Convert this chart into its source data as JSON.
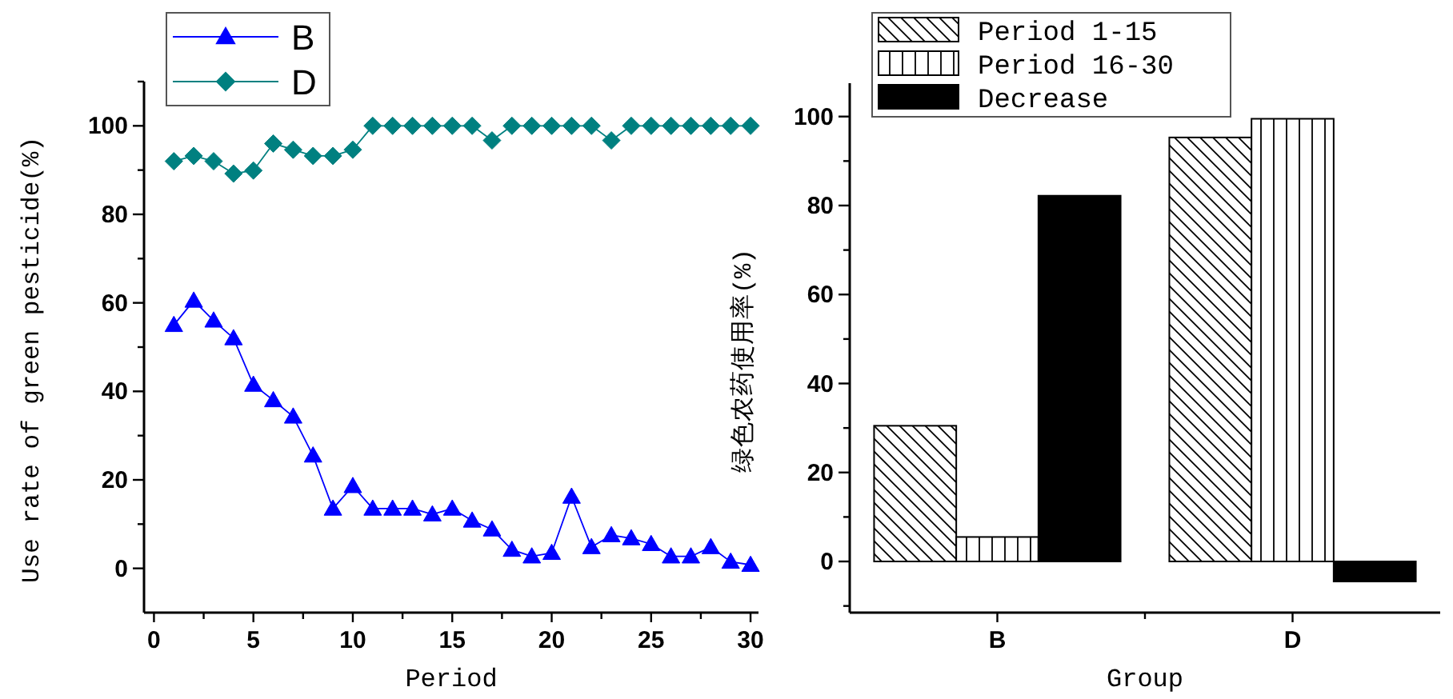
{
  "chart_data": [
    {
      "type": "line",
      "xlabel": "Period",
      "ylabel": "Use rate of green pesticide(%)",
      "xlim": [
        -0.5,
        30.4
      ],
      "ylim": [
        -10,
        110
      ],
      "xticks": [
        0,
        {
          "value": 2.5,
          "label": null
        },
        5,
        {
          "value": 7.5,
          "label": null
        },
        10,
        {
          "value": 12.5,
          "label": null
        },
        15,
        {
          "value": 17.5,
          "label": null
        },
        20,
        {
          "value": 22.5,
          "label": null
        },
        25,
        {
          "value": 27.5,
          "label": null
        },
        30
      ],
      "yticks": [
        0,
        {
          "value": 10,
          "label": null
        },
        20,
        {
          "value": 30,
          "label": null
        },
        40,
        {
          "value": 50,
          "label": null
        },
        60,
        {
          "value": 70,
          "label": null
        },
        80,
        {
          "value": 90,
          "label": null
        },
        100,
        {
          "value": 110,
          "label": null
        }
      ],
      "x": [
        1,
        2,
        3,
        4,
        5,
        6,
        7,
        8,
        9,
        10,
        11,
        12,
        13,
        14,
        15,
        16,
        17,
        18,
        19,
        20,
        21,
        22,
        23,
        24,
        25,
        26,
        27,
        28,
        29,
        30
      ],
      "series": [
        {
          "name": "B",
          "color": "#0000ff",
          "marker": "triangle",
          "values": [
            55,
            60.5,
            56,
            52,
            41.5,
            38,
            34.3,
            25.5,
            13.5,
            18.6,
            13.5,
            13.5,
            13.5,
            12.2,
            13.5,
            10.8,
            8.8,
            4.2,
            2.7,
            3.5,
            16.2,
            4.8,
            7.5,
            6.8,
            5.5,
            2.7,
            2.7,
            4.8,
            1.5,
            0.8
          ]
        },
        {
          "name": "D",
          "color": "#008080",
          "marker": "diamond",
          "values": [
            92,
            93.2,
            92,
            89.2,
            89.9,
            96,
            94.6,
            93.2,
            93.2,
            94.6,
            100,
            100,
            100,
            100,
            100,
            100,
            96.7,
            100,
            100,
            100,
            100,
            100,
            96.7,
            100,
            100,
            100,
            100,
            100,
            100,
            100
          ]
        }
      ],
      "legend": "top left",
      "grid": false
    },
    {
      "type": "bar",
      "xlabel": "Group",
      "ylabel": "绿色农药使用率(%)",
      "categories": [
        "B",
        "D"
      ],
      "ylim": [
        -11.5,
        107.5
      ],
      "yticks": [
        {
          "value": -10,
          "label": null
        },
        0,
        {
          "value": 10,
          "label": null
        },
        20,
        {
          "value": 30,
          "label": null
        },
        40,
        {
          "value": 50,
          "label": null
        },
        60,
        {
          "value": 70,
          "label": null
        },
        80,
        {
          "value": 90,
          "label": null
        },
        100
      ],
      "series": [
        {
          "name": "Period 1-15",
          "color": "#000000",
          "values": [
            30.5,
            95.3
          ]
        },
        {
          "name": "Period 16-30",
          "color": "#000000",
          "values": [
            5.5,
            99.5
          ]
        },
        {
          "name": "Decrease",
          "color": "#000000",
          "values": [
            82.2,
            -4.5
          ]
        }
      ],
      "legend": "top left",
      "grid": false
    }
  ]
}
